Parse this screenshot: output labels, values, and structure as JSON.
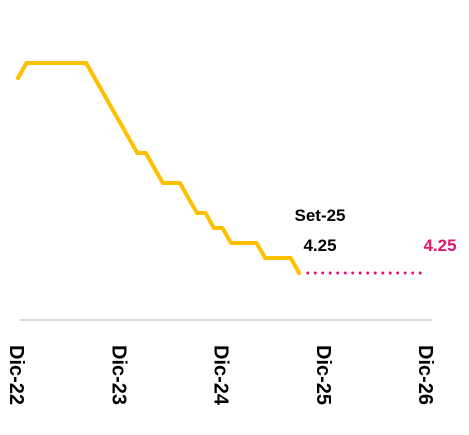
{
  "chart_data": {
    "type": "line",
    "categories": [
      "Dic-22",
      null,
      null,
      null,
      null,
      null,
      null,
      null,
      null,
      null,
      null,
      null,
      "Dic-23",
      null,
      null,
      null,
      null,
      null,
      null,
      null,
      null,
      null,
      null,
      null,
      "Dic-24",
      null,
      null,
      null,
      null,
      null,
      null,
      null,
      null,
      null,
      null,
      null,
      "Dic-25",
      null,
      null,
      null,
      null,
      null,
      null,
      null,
      null,
      null,
      null,
      null,
      "Dic-26"
    ],
    "series": [
      {
        "color": "#ffc000",
        "values": [
          7.5,
          7.75,
          7.75,
          7.75,
          7.75,
          7.75,
          7.75,
          7.75,
          7.75,
          7.5,
          7.25,
          7.0,
          6.75,
          6.5,
          6.25,
          6.25,
          6.0,
          5.75,
          5.75,
          5.75,
          5.5,
          5.25,
          5.25,
          5.0,
          5.0,
          4.75,
          4.75,
          4.75,
          4.75,
          4.5,
          4.5,
          4.5,
          4.5,
          4.25,
          null,
          null,
          null,
          null,
          null,
          null,
          null,
          null,
          null,
          null,
          null,
          null,
          null,
          null,
          null
        ]
      },
      {
        "color": "#e3136f",
        "dotted": true,
        "values": [
          null,
          null,
          null,
          null,
          null,
          null,
          null,
          null,
          null,
          null,
          null,
          null,
          null,
          null,
          null,
          null,
          null,
          null,
          null,
          null,
          null,
          null,
          null,
          null,
          null,
          null,
          null,
          null,
          null,
          null,
          null,
          null,
          null,
          null,
          4.25,
          4.25,
          4.25,
          4.25,
          4.25,
          4.25,
          4.25,
          4.25,
          4.25,
          4.25,
          4.25,
          4.25,
          4.25,
          4.25,
          4.25
        ]
      }
    ],
    "annotation": "Set-25"
  }
}
